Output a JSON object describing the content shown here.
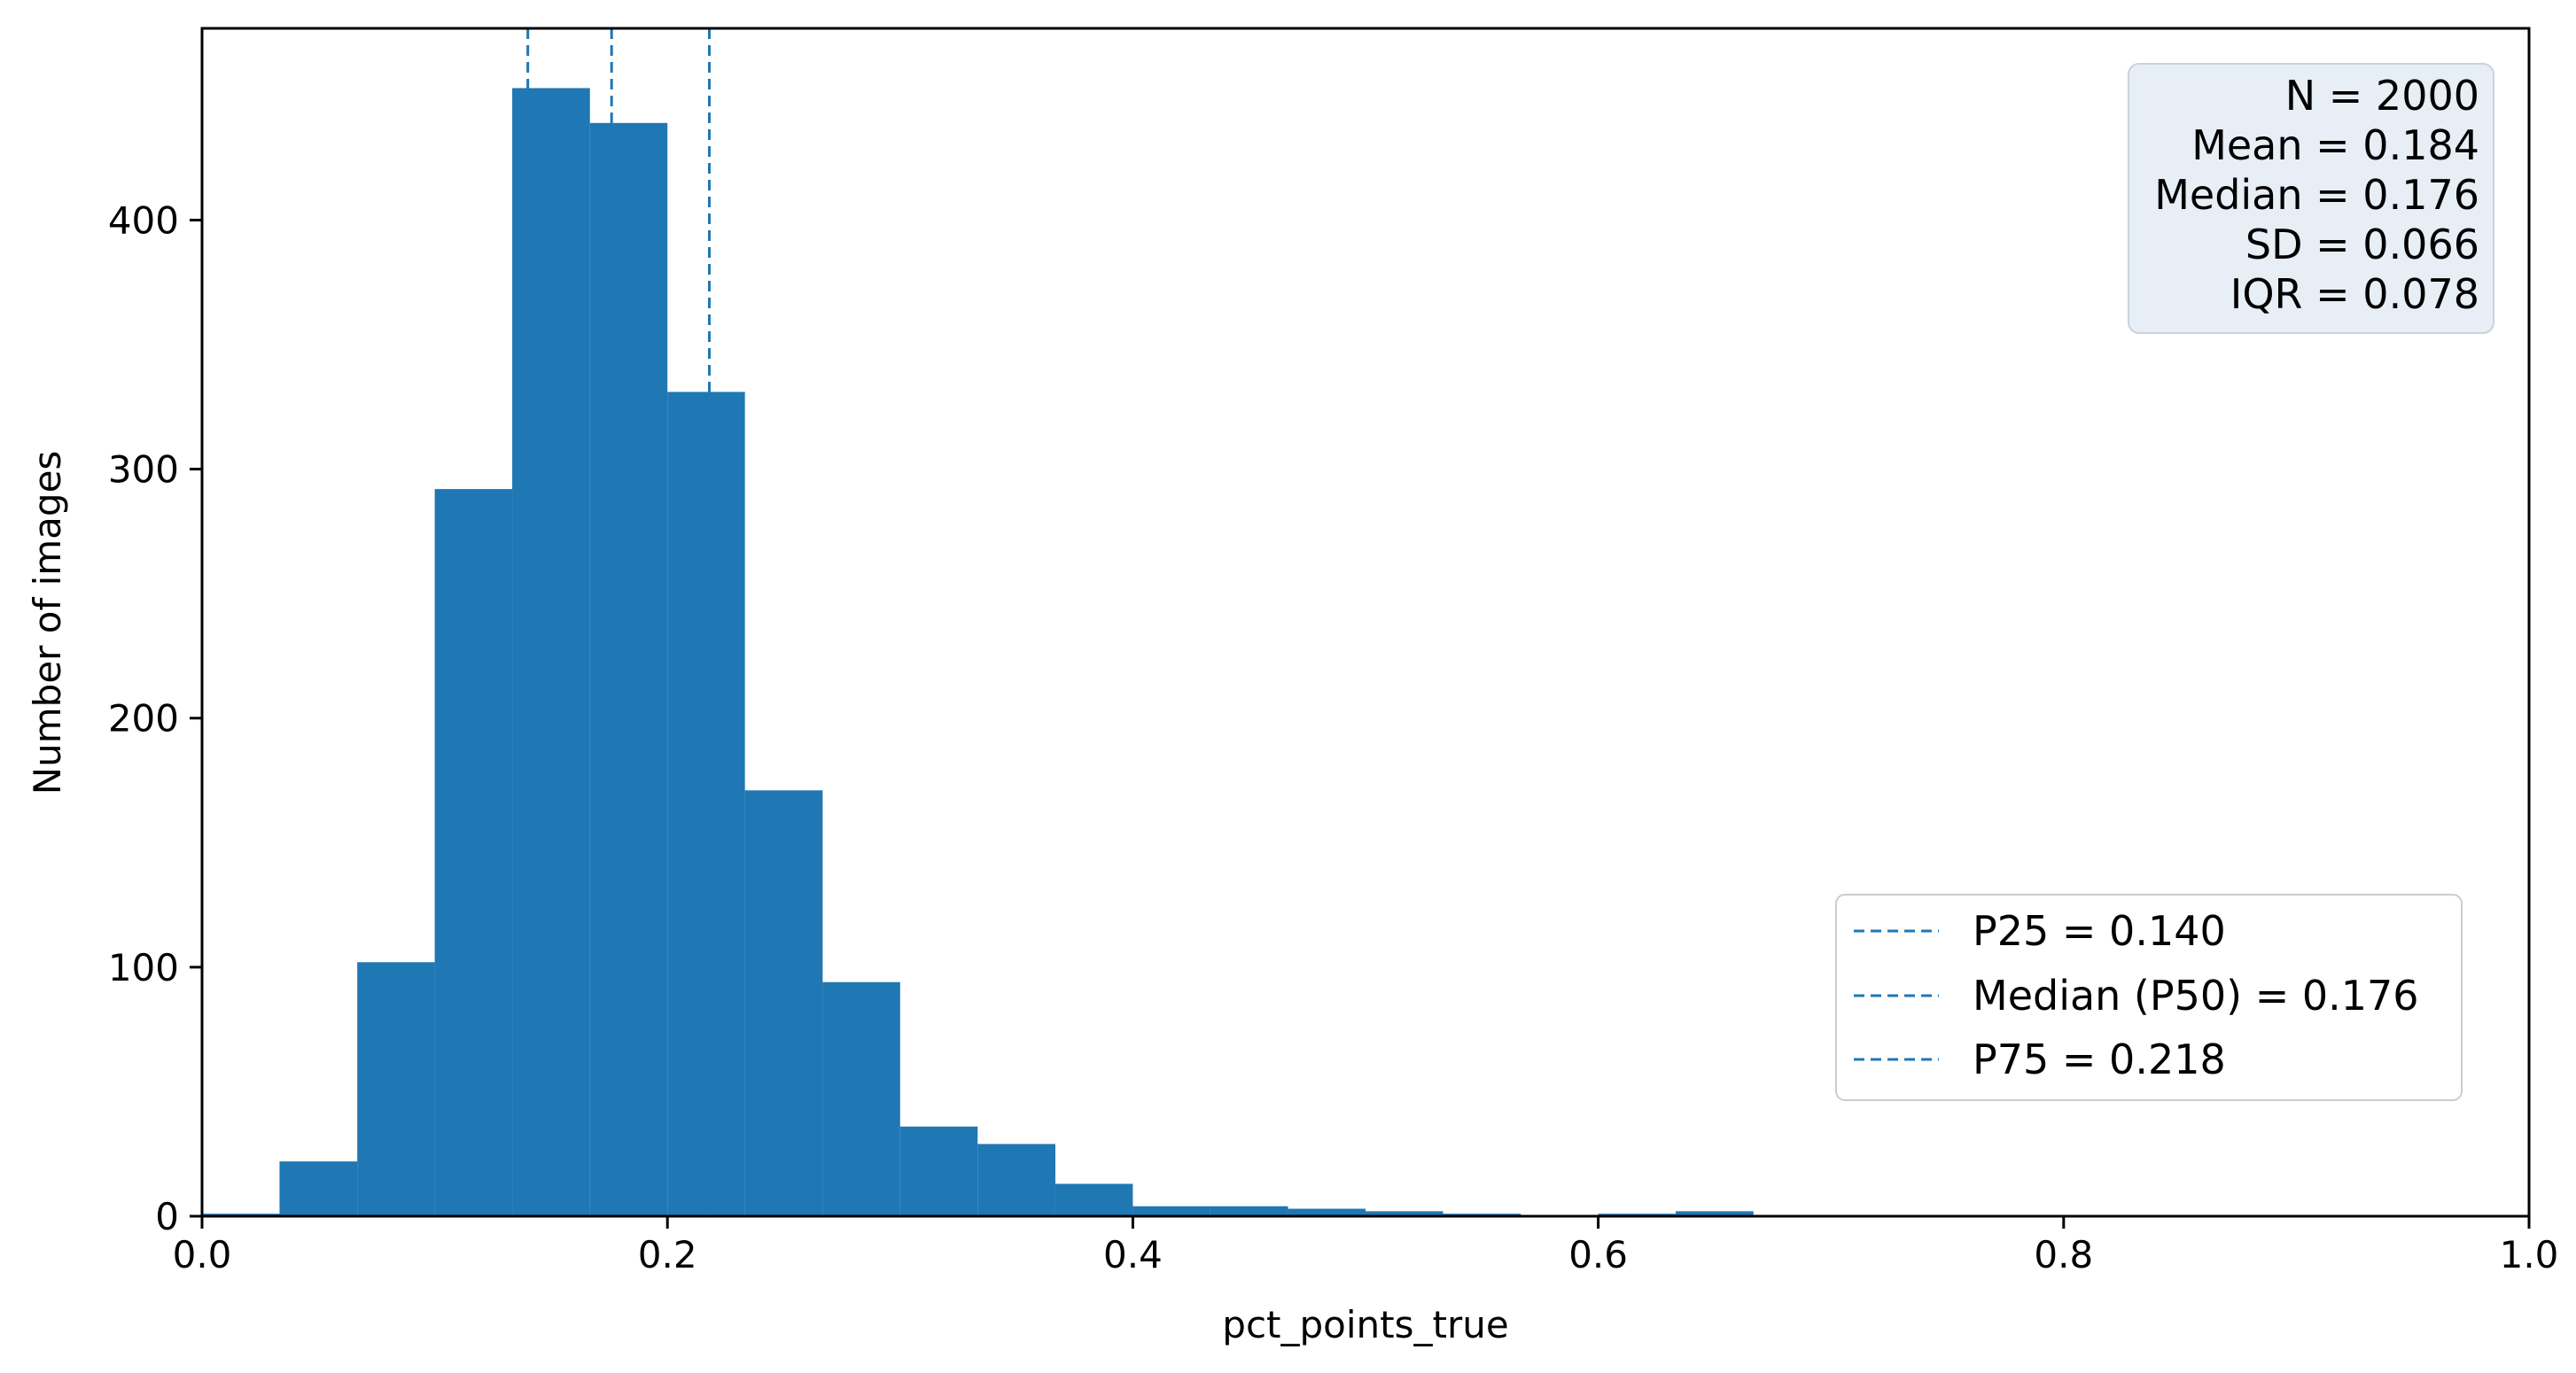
{
  "chart_data": {
    "type": "bar",
    "subtype": "histogram",
    "bin_edges": [
      0.0,
      0.0333,
      0.0667,
      0.1,
      0.1333,
      0.1667,
      0.2,
      0.2333,
      0.2667,
      0.3,
      0.3333,
      0.3667,
      0.4,
      0.4333,
      0.4667,
      0.5,
      0.5333,
      0.5667,
      0.6,
      0.6333,
      0.6667
    ],
    "values": [
      1,
      22,
      102,
      292,
      453,
      439,
      331,
      171,
      94,
      36,
      29,
      13,
      4,
      4,
      3,
      2,
      1,
      0,
      1,
      2
    ],
    "bar_color": "#1f77b4",
    "xlabel": "pct_points_true",
    "ylabel": "Number of images",
    "xlim": [
      0.0,
      1.0
    ],
    "ylim": [
      0,
      477
    ],
    "xticks": [
      0.0,
      0.2,
      0.4,
      0.6,
      0.8,
      1.0
    ],
    "xtick_labels": [
      "0.0",
      "0.2",
      "0.4",
      "0.6",
      "0.8",
      "1.0"
    ],
    "yticks": [
      0,
      100,
      200,
      300,
      400
    ],
    "ytick_labels": [
      "0",
      "100",
      "200",
      "300",
      "400"
    ],
    "grid": false,
    "vlines": [
      {
        "x": 0.14,
        "style": "dashed",
        "color": "#1f77b4"
      },
      {
        "x": 0.176,
        "style": "dashed",
        "color": "#1f77b4"
      },
      {
        "x": 0.218,
        "style": "dashed",
        "color": "#1f77b4"
      }
    ],
    "stats_box": {
      "placement": "top-right",
      "background": "#e8eef5",
      "lines": [
        "N = 2000",
        "Mean = 0.184",
        "Median = 0.176",
        "SD = 0.066",
        "IQR = 0.078"
      ]
    },
    "legend": {
      "placement": "lower-right",
      "entries": [
        "P25 = 0.140",
        "Median (P50) = 0.176",
        "P75 = 0.218"
      ]
    }
  }
}
